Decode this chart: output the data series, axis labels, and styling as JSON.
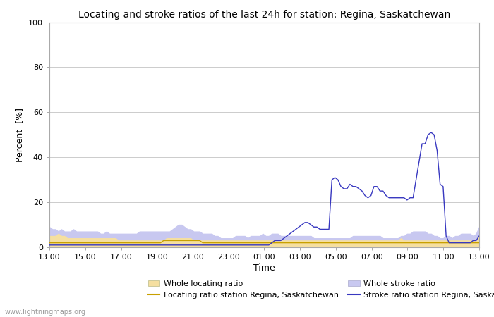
{
  "title": "Locating and stroke ratios of the last 24h for station: Regina, Saskatchewan",
  "xlabel": "Time",
  "ylabel": "Percent  [%]",
  "ylim": [
    0,
    100
  ],
  "yticks": [
    0,
    20,
    40,
    60,
    80,
    100
  ],
  "watermark": "www.lightningmaps.org",
  "x_labels": [
    "13:00",
    "15:00",
    "17:00",
    "19:00",
    "21:00",
    "23:00",
    "01:00",
    "03:00",
    "05:00",
    "07:00",
    "09:00",
    "11:00",
    "13:00"
  ],
  "whole_locating_color": "#f5dfa0",
  "whole_stroke_color": "#c8c8f0",
  "locating_line_color": "#c8a000",
  "stroke_line_color": "#3838c0",
  "background_color": "#ffffff",
  "plot_bg_color": "#ffffff",
  "grid_color": "#cccccc",
  "whole_locating": [
    5,
    5,
    5,
    6,
    5,
    5,
    4,
    4,
    4,
    4,
    4,
    4,
    4,
    4,
    4,
    4,
    4,
    4,
    4,
    4,
    4,
    4,
    4,
    3,
    3,
    3,
    3,
    3,
    3,
    3,
    3,
    3,
    3,
    3,
    3,
    3,
    3,
    3,
    3,
    4,
    4,
    4,
    4,
    4,
    4,
    4,
    4,
    4,
    3,
    3,
    3,
    3,
    3,
    3,
    3,
    3,
    3,
    3,
    3,
    3,
    3,
    3,
    3,
    3,
    3,
    3,
    3,
    3,
    3,
    3,
    3,
    3,
    3,
    3,
    3,
    3,
    3,
    3,
    3,
    3,
    3,
    3,
    3,
    3,
    3,
    3,
    3,
    3,
    3,
    3,
    3,
    3,
    3,
    3,
    3,
    3,
    3,
    3,
    3,
    3,
    3,
    3,
    3,
    3,
    3,
    3,
    3,
    3,
    3,
    3,
    3,
    3,
    3,
    3,
    3,
    3,
    3,
    4,
    3,
    3,
    3,
    3,
    3,
    3,
    3,
    3,
    3,
    3,
    3,
    3,
    3,
    3,
    3,
    3,
    3,
    3,
    3,
    3,
    3,
    3,
    3,
    3,
    3,
    5
  ],
  "whole_stroke": [
    9,
    8,
    8,
    7,
    8,
    7,
    7,
    7,
    8,
    7,
    7,
    7,
    7,
    7,
    7,
    7,
    7,
    6,
    6,
    7,
    6,
    6,
    6,
    6,
    6,
    6,
    6,
    6,
    6,
    6,
    7,
    7,
    7,
    7,
    7,
    7,
    7,
    7,
    7,
    7,
    7,
    8,
    9,
    10,
    10,
    9,
    8,
    8,
    7,
    7,
    7,
    6,
    6,
    6,
    6,
    5,
    5,
    4,
    4,
    4,
    4,
    4,
    5,
    5,
    5,
    5,
    4,
    5,
    5,
    5,
    5,
    6,
    5,
    5,
    6,
    6,
    6,
    5,
    5,
    5,
    5,
    5,
    5,
    5,
    5,
    5,
    5,
    5,
    4,
    4,
    4,
    4,
    4,
    4,
    4,
    4,
    4,
    4,
    4,
    4,
    4,
    5,
    5,
    5,
    5,
    5,
    5,
    5,
    5,
    5,
    5,
    4,
    4,
    4,
    4,
    4,
    4,
    5,
    5,
    6,
    6,
    7,
    7,
    7,
    7,
    7,
    6,
    6,
    5,
    5,
    4,
    4,
    5,
    5,
    4,
    5,
    5,
    6,
    6,
    6,
    6,
    5,
    6,
    9
  ],
  "locating_line": [
    2,
    2,
    2,
    2,
    2,
    2,
    2,
    2,
    2,
    2,
    2,
    2,
    2,
    2,
    2,
    2,
    2,
    2,
    2,
    2,
    2,
    2,
    2,
    2,
    2,
    2,
    2,
    2,
    2,
    2,
    2,
    2,
    2,
    2,
    2,
    2,
    2,
    2,
    3,
    3,
    3,
    3,
    3,
    3,
    3,
    3,
    3,
    3,
    3,
    3,
    3,
    2,
    2,
    2,
    2,
    2,
    2,
    2,
    2,
    2,
    2,
    2,
    2,
    2,
    2,
    2,
    2,
    2,
    2,
    2,
    2,
    2,
    2,
    2,
    2,
    2,
    2,
    2,
    2,
    2,
    2,
    2,
    2,
    2,
    2,
    2,
    2,
    2,
    2,
    2,
    2,
    2,
    2,
    2,
    2,
    2,
    2,
    2,
    2,
    2,
    2,
    2,
    2,
    2,
    2,
    2,
    2,
    2,
    2,
    2,
    2,
    2,
    2,
    2,
    2,
    2,
    2,
    2,
    2,
    2,
    2,
    2,
    2,
    2,
    2,
    2,
    2,
    2,
    2,
    2,
    2,
    2,
    2,
    2,
    2,
    2,
    2,
    2,
    2,
    2,
    2,
    2,
    2,
    2
  ],
  "stroke_line": [
    1,
    1,
    1,
    1,
    1,
    1,
    1,
    1,
    1,
    1,
    1,
    1,
    1,
    1,
    1,
    1,
    1,
    1,
    1,
    1,
    1,
    1,
    1,
    1,
    1,
    1,
    1,
    1,
    1,
    1,
    1,
    1,
    1,
    1,
    1,
    1,
    1,
    1,
    1,
    1,
    1,
    1,
    1,
    1,
    1,
    1,
    1,
    1,
    1,
    1,
    1,
    1,
    1,
    1,
    1,
    1,
    1,
    1,
    1,
    1,
    1,
    1,
    1,
    1,
    1,
    1,
    1,
    1,
    1,
    1,
    1,
    1,
    1,
    1,
    2,
    3,
    3,
    3,
    4,
    5,
    6,
    7,
    8,
    9,
    10,
    11,
    11,
    10,
    9,
    9,
    8,
    8,
    8,
    8,
    30,
    31,
    30,
    27,
    26,
    26,
    28,
    27,
    27,
    26,
    25,
    23,
    22,
    23,
    27,
    27,
    25,
    25,
    23,
    22,
    22,
    22,
    22,
    22,
    22,
    21,
    22,
    22,
    30,
    38,
    46,
    46,
    50,
    51,
    50,
    43,
    28,
    27,
    5,
    2,
    2,
    2,
    2,
    2,
    2,
    2,
    2,
    3,
    3,
    5
  ],
  "n": 144
}
